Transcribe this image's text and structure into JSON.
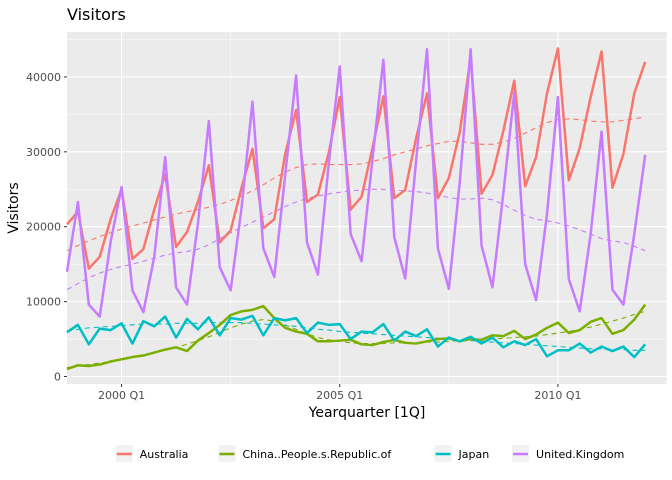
{
  "chart_data": {
    "type": "line",
    "title": "Visitors",
    "xlabel": "Yearquarter [1Q]",
    "ylabel": "Visitors",
    "xlim": [
      1998.75,
      2012.5
    ],
    "ylim": [
      -1000,
      46000
    ],
    "x_ticks": [
      {
        "value": 2000,
        "label": "2000 Q1"
      },
      {
        "value": 2005,
        "label": "2005 Q1"
      },
      {
        "value": 2010,
        "label": "2010 Q1"
      }
    ],
    "y_ticks": [
      0,
      10000,
      20000,
      30000,
      40000
    ],
    "y_tick_labels": [
      "0",
      "10000",
      "20000",
      "30000",
      "40000"
    ],
    "x_start": 1998.75,
    "x_step": 0.25,
    "grid": true,
    "legend_position": "bottom",
    "series": [
      {
        "name": "Australia",
        "color": "#F8766D",
        "values": [
          20300,
          22000,
          14400,
          16000,
          21000,
          25000,
          15700,
          17000,
          22300,
          27000,
          17300,
          19300,
          23300,
          28200,
          17900,
          19500,
          25200,
          30400,
          19800,
          21000,
          29700,
          35600,
          23300,
          24300,
          29900,
          37300,
          22300,
          24000,
          30500,
          37400,
          23800,
          24900,
          31800,
          37800,
          23800,
          26500,
          32600,
          42500,
          24400,
          26900,
          32800,
          39500,
          25400,
          29300,
          37800,
          43800,
          26200,
          30500,
          37300,
          43400,
          25200,
          29700,
          37800,
          42000
        ],
        "trend": [
          16800,
          17500,
          18100,
          18700,
          19200,
          19700,
          20100,
          20500,
          20900,
          21300,
          21700,
          22000,
          22300,
          22600,
          23000,
          23500,
          24100,
          24800,
          25600,
          26500,
          27300,
          27900,
          28300,
          28400,
          28300,
          28300,
          28300,
          28400,
          28700,
          29100,
          29600,
          30000,
          30400,
          30800,
          31100,
          31400,
          31400,
          31200,
          31000,
          31000,
          31300,
          31800,
          32500,
          33200,
          33900,
          34300,
          34400,
          34300,
          34100,
          34000,
          34000,
          34200,
          34400,
          34700
        ]
      },
      {
        "name": "China..People.s.Republic.of",
        "color": "#7CAE00",
        "values": [
          1000,
          1500,
          1400,
          1600,
          2000,
          2300,
          2600,
          2800,
          3200,
          3600,
          3900,
          3400,
          4800,
          5800,
          6900,
          8200,
          8700,
          8900,
          9400,
          7800,
          6500,
          6000,
          5700,
          4700,
          4700,
          4800,
          4900,
          4300,
          4200,
          4600,
          4900,
          4500,
          4400,
          4700,
          5000,
          5100,
          4700,
          5000,
          4900,
          5500,
          5400,
          6100,
          5000,
          5600,
          6500,
          7200,
          5800,
          6200,
          7300,
          7800,
          5700,
          6200,
          7600,
          9600
        ],
        "trend": [
          1200,
          1400,
          1600,
          1800,
          2000,
          2300,
          2600,
          2900,
          3200,
          3500,
          3900,
          4300,
          4800,
          5300,
          5900,
          6500,
          7000,
          7400,
          7600,
          7400,
          6900,
          6300,
          5700,
          5200,
          4900,
          4700,
          4500,
          4400,
          4400,
          4400,
          4500,
          4500,
          4500,
          4600,
          4600,
          4700,
          4800,
          4800,
          4900,
          5000,
          5100,
          5200,
          5300,
          5400,
          5600,
          5800,
          6000,
          6300,
          6600,
          7000,
          7400,
          7800,
          8300,
          8700
        ]
      },
      {
        "name": "Japan",
        "color": "#00BFC4",
        "values": [
          5900,
          6900,
          4300,
          6400,
          6200,
          7100,
          4400,
          7400,
          6700,
          8000,
          5200,
          7700,
          6300,
          7900,
          5500,
          7800,
          7600,
          8100,
          5500,
          7800,
          7500,
          7800,
          5800,
          7200,
          6900,
          7000,
          5000,
          6000,
          5900,
          7000,
          4800,
          6000,
          5400,
          6300,
          4000,
          5200,
          4700,
          5300,
          4400,
          5200,
          3900,
          4700,
          4200,
          5000,
          2700,
          3500,
          3500,
          4400,
          3200,
          4000,
          3400,
          4000,
          2600,
          4300
        ],
        "trend": [
          6100,
          6300,
          6500,
          6600,
          6700,
          6800,
          6900,
          7000,
          7000,
          7000,
          7100,
          7100,
          7100,
          7200,
          7200,
          7200,
          7200,
          7100,
          7000,
          6900,
          6800,
          6700,
          6500,
          6300,
          6200,
          6000,
          5900,
          5800,
          5700,
          5600,
          5500,
          5400,
          5300,
          5200,
          5100,
          5000,
          4900,
          4800,
          4700,
          4600,
          4500,
          4400,
          4300,
          4200,
          4100,
          4000,
          3900,
          3800,
          3700,
          3700,
          3600,
          3600,
          3500,
          3500
        ]
      },
      {
        "name": "United.Kingdom",
        "color": "#C77CFF",
        "values": [
          14000,
          23300,
          9600,
          8000,
          18000,
          25300,
          11500,
          8600,
          16000,
          29300,
          11900,
          9600,
          20400,
          34100,
          14600,
          11500,
          22500,
          36700,
          17100,
          13300,
          26900,
          40200,
          17900,
          13600,
          28500,
          41400,
          19000,
          15400,
          29000,
          42300,
          18600,
          13100,
          28800,
          43700,
          17100,
          11700,
          25900,
          43700,
          17500,
          11900,
          24500,
          37900,
          15000,
          10200,
          21700,
          37300,
          13000,
          8700,
          19000,
          32700,
          11600,
          9600,
          19000,
          29600
        ],
        "trend": [
          11600,
          12400,
          13200,
          13800,
          14300,
          14700,
          15000,
          15400,
          15800,
          16200,
          16500,
          16700,
          17000,
          17600,
          18400,
          19200,
          19900,
          20600,
          21300,
          22000,
          22700,
          23300,
          23800,
          24100,
          24400,
          24600,
          24800,
          24900,
          25000,
          25000,
          24900,
          24800,
          24700,
          24500,
          24200,
          23900,
          23700,
          23700,
          23800,
          23600,
          23000,
          22200,
          21500,
          21000,
          20800,
          20500,
          20100,
          19600,
          19000,
          18400,
          18100,
          17900,
          17400,
          16800
        ]
      }
    ]
  }
}
